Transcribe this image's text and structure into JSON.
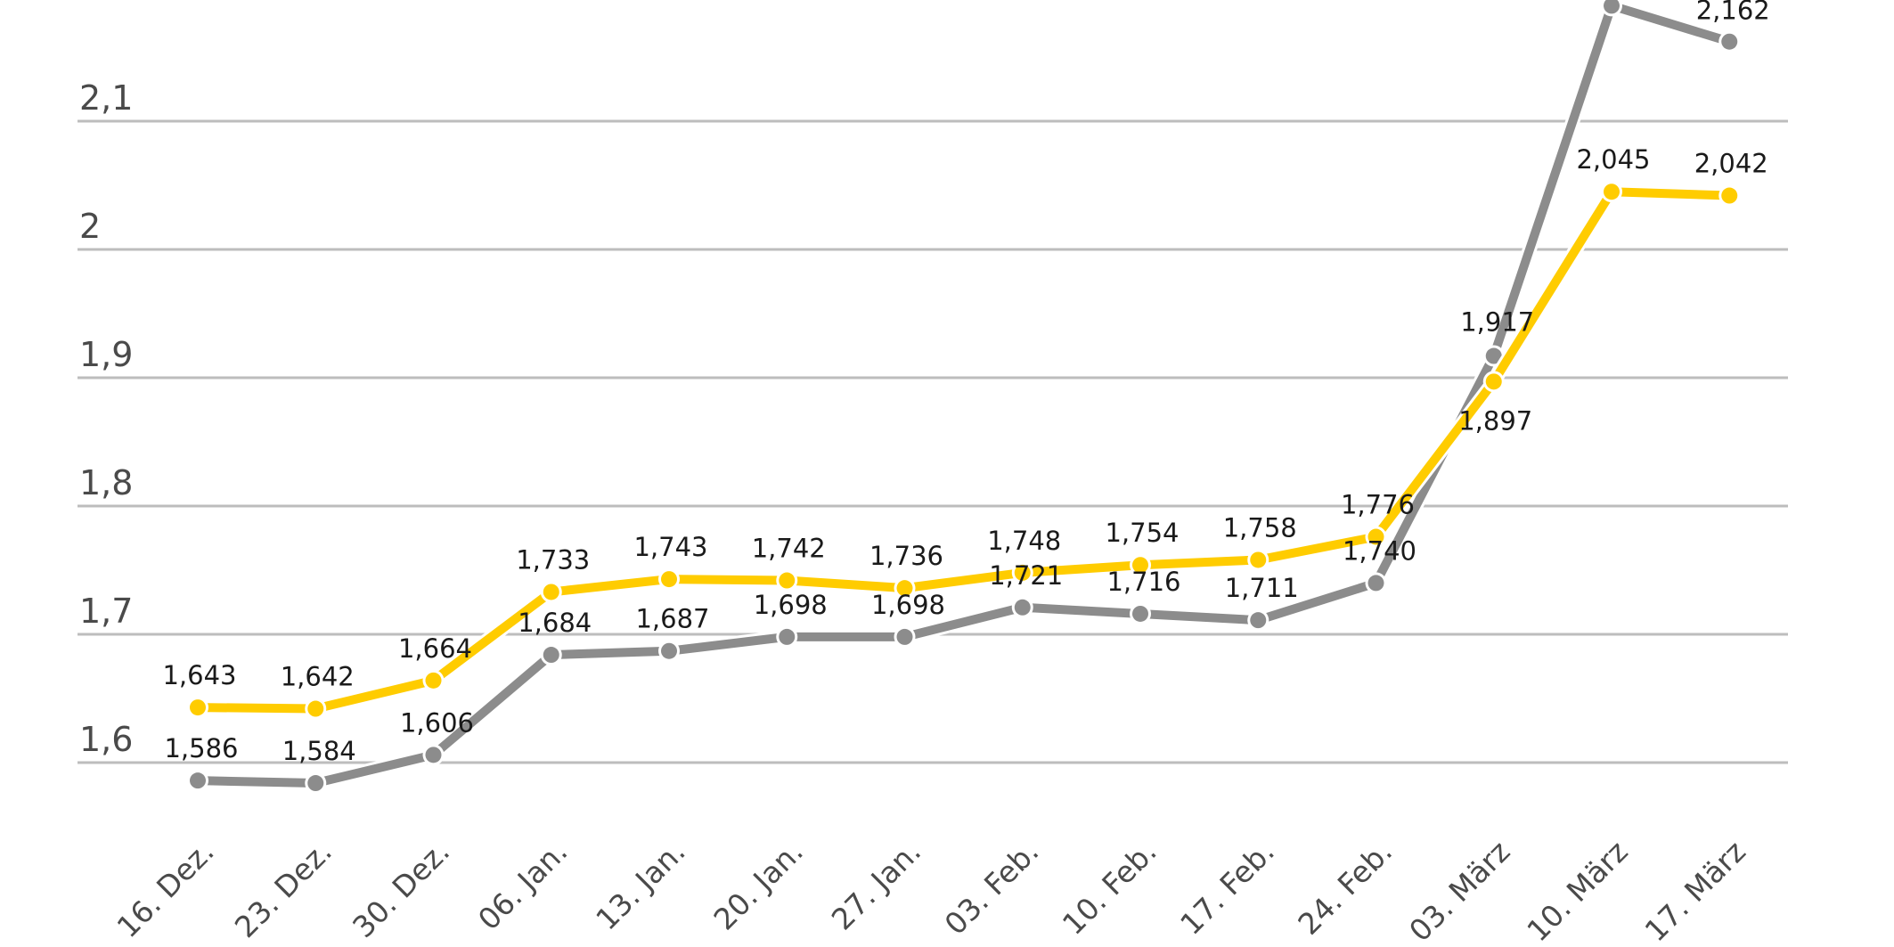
{
  "chart_data": {
    "type": "line",
    "title": "",
    "xlabel": "",
    "ylabel": "",
    "categories": [
      "16. Dez.",
      "23. Dez.",
      "30. Dez.",
      "06. Jan.",
      "13. Jan.",
      "20. Jan.",
      "27. Jan.",
      "03. Feb.",
      "10. Feb.",
      "17. Feb.",
      "24. Feb.",
      "03. März",
      "10. März",
      "17. März"
    ],
    "series": [
      {
        "name": "yellow-series",
        "color": "#FFCC00",
        "values": [
          1.643,
          1.642,
          1.664,
          1.733,
          1.743,
          1.742,
          1.736,
          1.748,
          1.754,
          1.758,
          1.776,
          1.897,
          2.045,
          2.042
        ],
        "labels": [
          "1,643",
          "1,642",
          "1,664",
          "1,733",
          "1,743",
          "1,742",
          "1,736",
          "1,748",
          "1,754",
          "1,758",
          "1,776",
          "1,897",
          "2,045",
          "2,042"
        ]
      },
      {
        "name": "grey-series",
        "color": "#8C8C8C",
        "values": [
          1.586,
          1.584,
          1.606,
          1.684,
          1.687,
          1.698,
          1.698,
          1.721,
          1.716,
          1.711,
          1.74,
          1.917,
          2.19,
          2.162
        ],
        "labels": [
          "1,586",
          "1,584",
          "1,606",
          "1,684",
          "1,687",
          "1,698",
          "1,698",
          "1,721",
          "1,716",
          "1,711",
          "1,740",
          "1,917",
          "",
          "2,162"
        ]
      }
    ],
    "yticks": [
      1.6,
      1.7,
      1.8,
      1.9,
      2.0,
      2.1
    ],
    "ytick_labels": [
      "1,6",
      "1,7",
      "1,8",
      "1,9",
      "2",
      "2,1"
    ],
    "ylim": [
      1.6,
      2.2
    ],
    "grid": true,
    "legend": "none",
    "gridline_color": "#BDBDBD"
  }
}
